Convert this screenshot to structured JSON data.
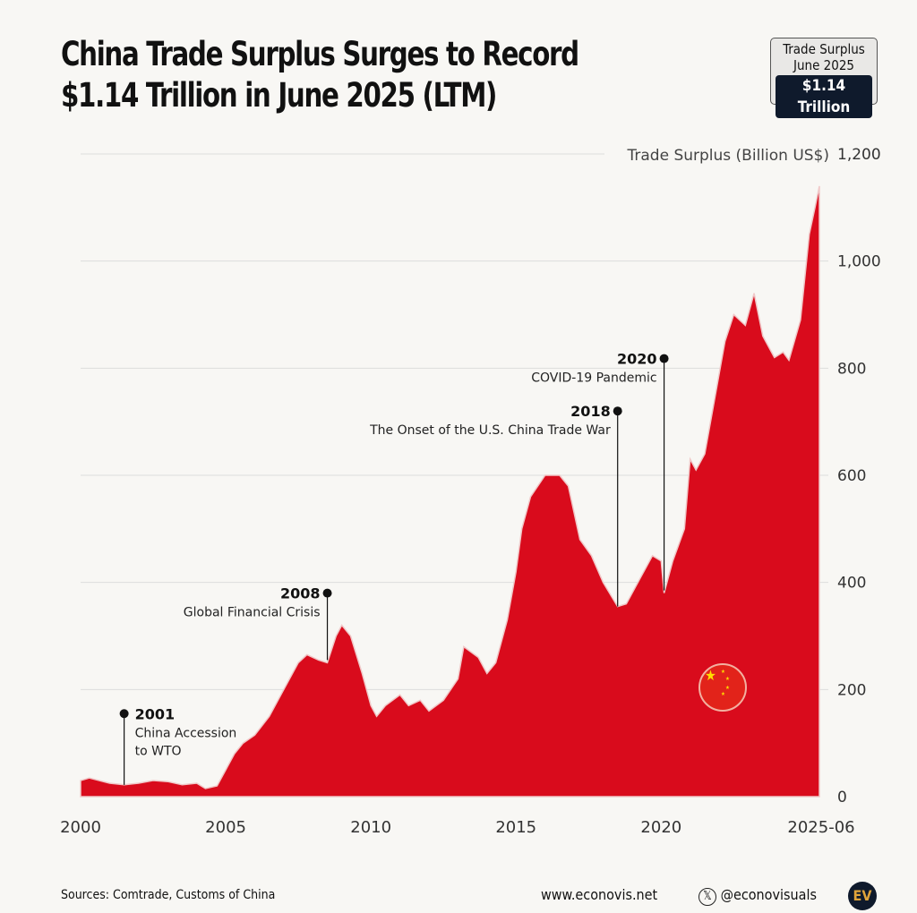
{
  "title_lines": [
    "China Trade Surplus Surges to Record",
    "$1.14 Trillion in June 2025 (LTM)"
  ],
  "badge": {
    "label1": "Trade Surplus",
    "label2": "June 2025",
    "value": "$1.14 Trillion"
  },
  "footer": {
    "sources": "Sources: Comtrade, Customs of China",
    "website": "www.econovis.net",
    "handle": "@econovisuals",
    "logo": "EV"
  },
  "colors": {
    "area": "#d90b1c",
    "grid": "#dcdcdc"
  },
  "chart_data": {
    "type": "area",
    "title": "China Trade Surplus Surges to Record $1.14 Trillion in June 2025 (LTM)",
    "ylabel": "Trade Surplus (Billion US$)",
    "ylim": [
      0,
      1200
    ],
    "xlim": [
      2000,
      2025.45
    ],
    "yticks": [
      {
        "v": 0,
        "label": "0"
      },
      {
        "v": 200,
        "label": "200"
      },
      {
        "v": 400,
        "label": "400"
      },
      {
        "v": 600,
        "label": "600"
      },
      {
        "v": 800,
        "label": "800"
      },
      {
        "v": 1000,
        "label": "1,000"
      },
      {
        "v": 1200,
        "label": "1,200"
      }
    ],
    "xticks": [
      {
        "v": 2000,
        "label": "2000"
      },
      {
        "v": 2005,
        "label": "2005"
      },
      {
        "v": 2010,
        "label": "2010"
      },
      {
        "v": 2015,
        "label": "2015"
      },
      {
        "v": 2020,
        "label": "2020"
      },
      {
        "v": 2025.45,
        "label": "2025-06"
      }
    ],
    "x": [
      2000,
      2000.3,
      2001,
      2001.5,
      2002,
      2002.5,
      2003,
      2003.5,
      2004,
      2004.3,
      2004.7,
      2005,
      2005.3,
      2005.6,
      2006,
      2006.5,
      2007,
      2007.5,
      2007.8,
      2008.2,
      2008.5,
      2008.8,
      2009,
      2009.3,
      2009.7,
      2010,
      2010.2,
      2010.5,
      2011,
      2011.3,
      2011.7,
      2012,
      2012.5,
      2013,
      2013.2,
      2013.7,
      2014,
      2014.3,
      2014.7,
      2015,
      2015.2,
      2015.5,
      2016,
      2016.5,
      2016.8,
      2017.2,
      2017.6,
      2018,
      2018.5,
      2018.8,
      2019.3,
      2019.7,
      2020,
      2020.1,
      2020.4,
      2020.8,
      2021,
      2021.2,
      2021.5,
      2021.8,
      2022.2,
      2022.5,
      2022.9,
      2023.2,
      2023.5,
      2023.9,
      2024.2,
      2024.4,
      2024.8,
      2025.1,
      2025.3,
      2025.45
    ],
    "values": [
      30,
      35,
      25,
      22,
      25,
      30,
      28,
      22,
      25,
      15,
      20,
      50,
      80,
      100,
      115,
      150,
      200,
      250,
      265,
      255,
      250,
      300,
      320,
      300,
      230,
      170,
      150,
      170,
      190,
      170,
      180,
      160,
      180,
      220,
      280,
      260,
      230,
      250,
      330,
      420,
      500,
      560,
      600,
      600,
      580,
      480,
      450,
      400,
      355,
      360,
      410,
      450,
      440,
      380,
      440,
      500,
      630,
      610,
      640,
      730,
      850,
      900,
      880,
      940,
      860,
      820,
      830,
      815,
      890,
      1050,
      1100,
      1140
    ],
    "annotations": [
      {
        "x": 2001.5,
        "y": 155,
        "line_to": 22,
        "year": "2001",
        "text": [
          "China Accession",
          "to WTO"
        ],
        "side": "right"
      },
      {
        "x": 2008.5,
        "y": 380,
        "line_to": 255,
        "year": "2008",
        "text": [
          "Global Financial Crisis"
        ],
        "side": "left"
      },
      {
        "x": 2018.5,
        "y": 720,
        "line_to": 355,
        "year": "2018",
        "text": [
          "The Onset of the U.S. China Trade War"
        ],
        "side": "left"
      },
      {
        "x": 2020.1,
        "y": 818,
        "line_to": 385,
        "year": "2020",
        "text": [
          "COVID-19 Pandemic"
        ],
        "side": "left"
      }
    ]
  }
}
